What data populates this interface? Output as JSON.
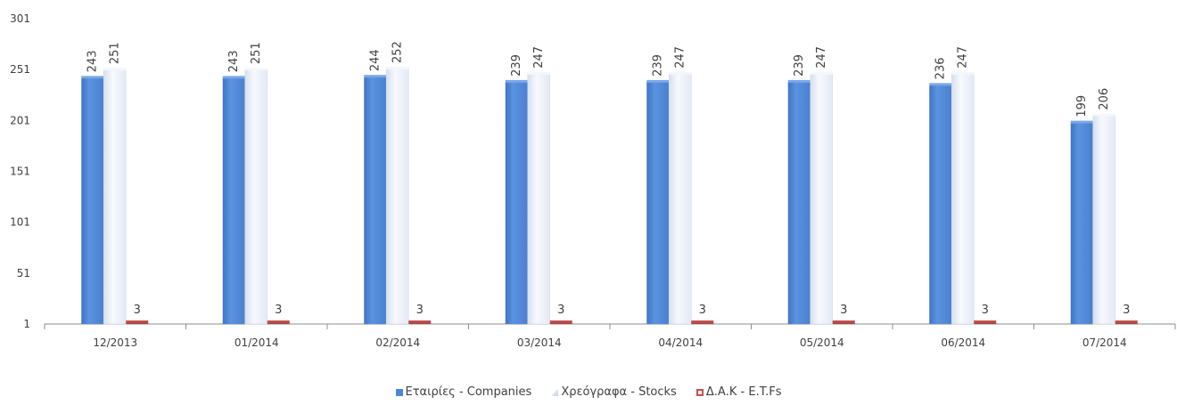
{
  "chart_data": {
    "type": "bar",
    "categories": [
      "12/2013",
      "01/2014",
      "02/2014",
      "03/2014",
      "04/2014",
      "05/2014",
      "06/2014",
      "07/2014"
    ],
    "series": [
      {
        "name": "Εταιρίες - Companies",
        "values": [
          243,
          243,
          244,
          239,
          239,
          239,
          236,
          199
        ],
        "color": "#4f87d8"
      },
      {
        "name": "Χρεόγραφα - Stocks",
        "values": [
          251,
          251,
          252,
          247,
          247,
          247,
          247,
          206
        ],
        "color": "#eef2fa"
      },
      {
        "name": "Δ.Α.Κ - E.T.Fs",
        "values": [
          3,
          3,
          3,
          3,
          3,
          3,
          3,
          3
        ],
        "color": "#c0504d"
      }
    ],
    "yticks": [
      1,
      51,
      101,
      151,
      201,
      251,
      301
    ],
    "ylim": [
      1,
      301
    ],
    "grid": false,
    "legend_position": "bottom",
    "data_labels": true
  },
  "legend": {
    "companies": "Εταιρίες - Companies",
    "stocks": "Χρεόγραφα - Stocks",
    "etfs": "Δ.Α.Κ - E.T.Fs"
  }
}
